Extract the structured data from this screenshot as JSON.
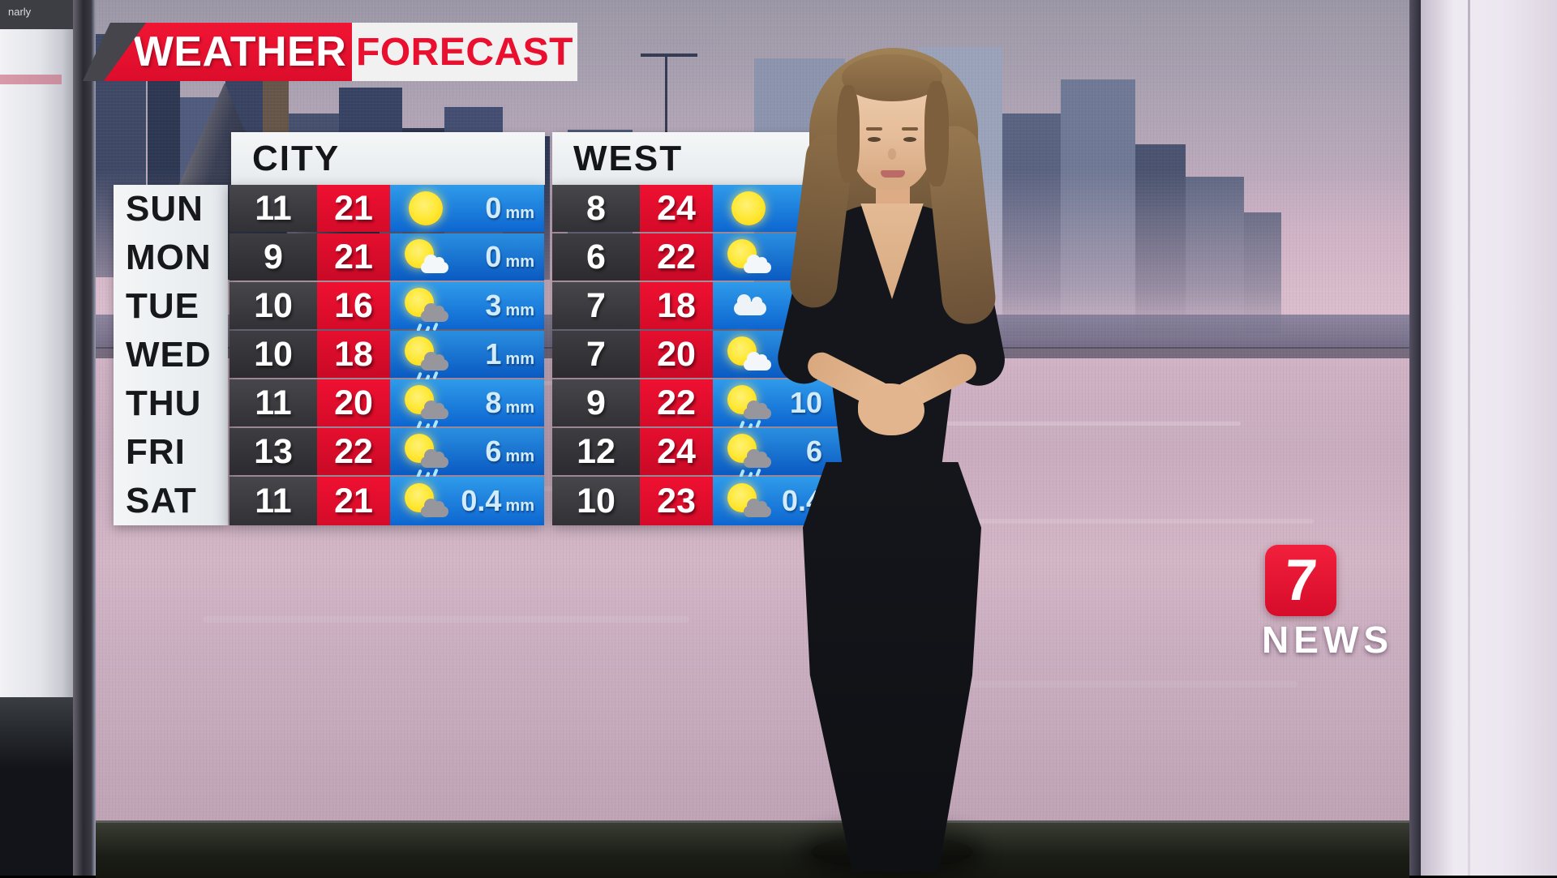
{
  "watermark": "narly",
  "banner": {
    "word1": "WEATHER",
    "word2": "FORECAST"
  },
  "days": [
    "SUN",
    "MON",
    "TUE",
    "WED",
    "THU",
    "FRI",
    "SAT"
  ],
  "city": {
    "title": "CITY",
    "rows": [
      {
        "min": "11",
        "max": "21",
        "icon": "sunny",
        "rain": "0",
        "unit": "mm"
      },
      {
        "min": "9",
        "max": "21",
        "icon": "sun-cloud",
        "rain": "0",
        "unit": "mm"
      },
      {
        "min": "10",
        "max": "16",
        "icon": "sun-showers",
        "rain": "3",
        "unit": "mm"
      },
      {
        "min": "10",
        "max": "18",
        "icon": "sun-showers",
        "rain": "1",
        "unit": "mm"
      },
      {
        "min": "11",
        "max": "20",
        "icon": "sun-showers",
        "rain": "8",
        "unit": "mm"
      },
      {
        "min": "13",
        "max": "22",
        "icon": "sun-showers",
        "rain": "6",
        "unit": "mm"
      },
      {
        "min": "11",
        "max": "21",
        "icon": "sun-grey-cloud",
        "rain": "0.4",
        "unit": "mm"
      }
    ]
  },
  "west": {
    "title": "WEST",
    "rows": [
      {
        "min": "8",
        "max": "24",
        "icon": "sunny",
        "rain": "",
        "unit": ""
      },
      {
        "min": "6",
        "max": "22",
        "icon": "sun-cloud",
        "rain": "",
        "unit": ""
      },
      {
        "min": "7",
        "max": "18",
        "icon": "cloudy",
        "rain": "",
        "unit": ""
      },
      {
        "min": "7",
        "max": "20",
        "icon": "sun-cloud",
        "rain": "",
        "unit": ""
      },
      {
        "min": "9",
        "max": "22",
        "icon": "sun-showers",
        "rain": "10",
        "unit": ""
      },
      {
        "min": "12",
        "max": "24",
        "icon": "sun-showers",
        "rain": "6",
        "unit": ""
      },
      {
        "min": "10",
        "max": "23",
        "icon": "sun-grey-cloud",
        "rain": "0.4",
        "unit": ""
      }
    ]
  },
  "logo": {
    "seven": "7",
    "news": "NEWS"
  },
  "colors": {
    "brand_red": "#e8102e",
    "min_column": "#3a393d",
    "max_column": "#e30b2d",
    "rain_column_top": "#2f9bea",
    "rain_column_bottom": "#0d66d0",
    "rain_text": "#d3ecfc"
  },
  "chart_data": {
    "type": "table",
    "title": "WEATHER FORECAST",
    "columns": [
      "day",
      "city_min",
      "city_max",
      "city_rain_mm",
      "west_min",
      "west_max",
      "west_rain_mm"
    ],
    "rows": [
      [
        "SUN",
        11,
        21,
        0,
        8,
        24,
        null
      ],
      [
        "MON",
        9,
        21,
        0,
        6,
        22,
        null
      ],
      [
        "TUE",
        10,
        16,
        3,
        7,
        18,
        null
      ],
      [
        "WED",
        10,
        18,
        1,
        7,
        20,
        null
      ],
      [
        "THU",
        11,
        20,
        8,
        9,
        22,
        10
      ],
      [
        "FRI",
        13,
        22,
        6,
        12,
        24,
        6
      ],
      [
        "SAT",
        11,
        21,
        0.4,
        10,
        23,
        0.4
      ]
    ]
  }
}
